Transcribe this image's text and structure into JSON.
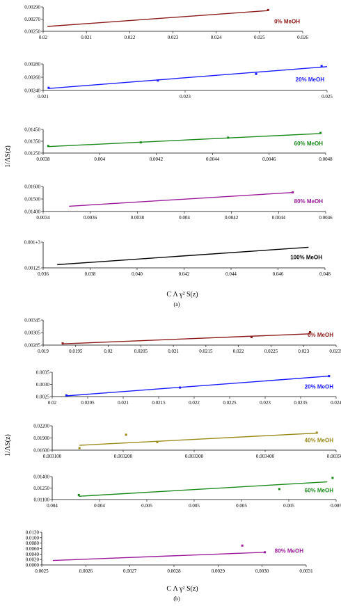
{
  "figure": {
    "ylabel": "1/ΛS(z)",
    "xlabel": "C Λ γ² S(z)",
    "caption_a": "(a)",
    "caption_b": "(b)"
  },
  "chart_data": [
    {
      "type": "line",
      "label": "0% MeOH",
      "color": "#8b1a1a",
      "xlim": [
        0.02,
        0.026
      ],
      "ylim": [
        0.0025,
        0.0029
      ],
      "xticks": [
        "0.02",
        "0.021",
        "0.022",
        "0.023",
        "0.024",
        "0.025",
        "0.026"
      ],
      "yticks": [
        "0.00250",
        "0.00270",
        "0.00290"
      ],
      "series": [
        {
          "x": [
            0.0201,
            0.0252
          ],
          "y": [
            0.00258,
            0.00284
          ]
        }
      ],
      "points": {
        "x": [
          0.0252
        ],
        "y": [
          0.00285
        ]
      }
    },
    {
      "type": "line",
      "label": "20% MeOH",
      "color": "#1a1aff",
      "xlim": [
        0.021,
        0.0262
      ],
      "ylim": [
        0.0024,
        0.0028
      ],
      "xticks": [
        "0.021",
        "0.023",
        "0.025"
      ],
      "yticks": [
        "0.00240",
        "0.00260",
        "0.00280"
      ],
      "series": [
        {
          "x": [
            0.0211,
            0.0262
          ],
          "y": [
            0.00243,
            0.00276
          ]
        }
      ],
      "points": {
        "x": [
          0.0211,
          0.0231,
          0.0249,
          0.0261
        ],
        "y": [
          0.00244,
          0.00255,
          0.00265,
          0.00277
        ]
      }
    },
    {
      "type": "line",
      "label": "60% MeOH",
      "color": "#1a8a1a",
      "xlim": [
        0.0038,
        0.0049
      ],
      "ylim": [
        0.0125,
        0.0145
      ],
      "xticks": [
        "0.0038",
        "0.004",
        "0.0042",
        "0.0044",
        "0.0046",
        "0.0048"
      ],
      "yticks": [
        "0.01250",
        "0.01350",
        "0.01450"
      ],
      "series": [
        {
          "x": [
            0.00382,
            0.00488
          ],
          "y": [
            0.01305,
            0.01415
          ]
        }
      ],
      "points": {
        "x": [
          0.00382,
          0.00418,
          0.00452,
          0.00488
        ],
        "y": [
          0.0131,
          0.0134,
          0.0138,
          0.0142
        ]
      }
    },
    {
      "type": "line",
      "label": "80% MeOH",
      "color": "#9a1a9a",
      "xlim": [
        0.0034,
        0.0046
      ],
      "ylim": [
        0.014,
        0.016
      ],
      "xticks": [
        "0.0034",
        "0.0036",
        "0.0038",
        "0.004",
        "0.0042",
        "0.0044",
        "0.0046"
      ],
      "yticks": [
        "0.01400",
        "0.01500",
        "0.01600"
      ],
      "series": [
        {
          "x": [
            0.00351,
            0.00446
          ],
          "y": [
            0.01442,
            0.01552
          ]
        }
      ],
      "points": {
        "x": [
          0.00446
        ],
        "y": [
          0.01553
        ]
      }
    },
    {
      "type": "line",
      "label": "100% MeOH",
      "color": "#000000",
      "xlim": [
        0.036,
        0.048
      ],
      "ylim": [
        0.00125,
        0.00145
      ],
      "xticks": [
        "0.036",
        "0.038",
        "0.040",
        "0.042",
        "0.044",
        "0.046",
        "0.048"
      ],
      "yticks": [
        "0.00125",
        "0.001+3"
      ],
      "series": [
        {
          "x": [
            0.0366,
            0.0473
          ],
          "y": [
            0.001275,
            0.00141
          ]
        }
      ],
      "points": {
        "x": [],
        "y": []
      }
    },
    {
      "type": "line",
      "label": "0% MeOH",
      "color": "#8b1a1a",
      "xlim": [
        0.019,
        0.0235
      ],
      "ylim": [
        0.00285,
        0.00345
      ],
      "xticks": [
        "0.019",
        "0.0195",
        "0.02",
        "0.0205",
        "0.021",
        "0.0215",
        "0.022",
        "0.0225",
        "0.023",
        "0.0235"
      ],
      "yticks": [
        "0.00285",
        "0.00305",
        "0.00345"
      ],
      "series": [
        {
          "x": [
            0.0193,
            0.0231
          ],
          "y": [
            0.00288,
            0.00312
          ]
        }
      ],
      "points": {
        "x": [
          0.0193,
          0.0222,
          0.0231
        ],
        "y": [
          0.00289,
          0.00304,
          0.00316
        ]
      }
    },
    {
      "type": "line",
      "label": "20% MeOH",
      "color": "#1a1aff",
      "xlim": [
        0.02,
        0.024
      ],
      "ylim": [
        0.0025,
        0.0035
      ],
      "xticks": [
        "0.02",
        "0.0205",
        "0.021",
        "0.0215",
        "0.022",
        "0.0225",
        "0.023",
        "0.0235",
        "0.024"
      ],
      "yticks": [
        "0.0025",
        "0.0030",
        "0.0035"
      ],
      "series": [
        {
          "x": [
            0.0202,
            0.0239
          ],
          "y": [
            0.00253,
            0.00334
          ]
        }
      ],
      "points": {
        "x": [
          0.0202,
          0.0218,
          0.0239
        ],
        "y": [
          0.00255,
          0.00287,
          0.00334
        ]
      }
    },
    {
      "type": "line",
      "label": "40% MeOH",
      "color": "#9a8a1a",
      "xlim": [
        0.0031,
        0.0036
      ],
      "ylim": [
        0.016,
        0.022
      ],
      "xticks": [
        "0.003100",
        "0.003200",
        "0.003300",
        "0.003400",
        "0.003500"
      ],
      "yticks": [
        "0.01600",
        "0.01900",
        "0.02200"
      ],
      "series": [
        {
          "x": [
            0.003148,
            0.003566
          ],
          "y": [
            0.0172,
            0.0202
          ]
        }
      ],
      "points": {
        "x": [
          0.003148,
          0.00323,
          0.003285,
          0.003566
        ],
        "y": [
          0.0165,
          0.0198,
          0.018,
          0.0203
        ]
      }
    },
    {
      "type": "line",
      "label": "60% MeOH",
      "color": "#1a8a1a",
      "xlim": [
        0.004,
        0.0056
      ],
      "ylim": [
        0.011,
        0.0145
      ],
      "xticks": [
        "0.004",
        "0.004",
        "0.005",
        "0.005",
        "0.005",
        "0.005",
        "0.005"
      ],
      "yticks": [
        "0.01100",
        "0.01250",
        "0.01400"
      ],
      "series": [
        {
          "x": [
            0.00415,
            0.00555
          ],
          "y": [
            0.0115,
            0.0137
          ]
        }
      ],
      "points": {
        "x": [
          0.00415,
          0.00528,
          0.00558
        ],
        "y": [
          0.0117,
          0.0126,
          0.0143
        ]
      }
    },
    {
      "type": "line",
      "label": "80% MeOH",
      "color": "#9a1a9a",
      "xlim": [
        0.0025,
        0.0031
      ],
      "ylim": [
        0.0,
        0.012
      ],
      "xticks": [
        "0.0025",
        "0.0026",
        "0.0027",
        "0.0028",
        "0.0029",
        "0.0030",
        "0.0031"
      ],
      "yticks": [
        "0.0000",
        "0.0020",
        "0.0040",
        "0.0060",
        "0.0080",
        "0.0100",
        "0.0120"
      ],
      "series": [
        {
          "x": [
            0.002525,
            0.003006
          ],
          "y": [
            0.00165,
            0.00465
          ]
        }
      ],
      "points": {
        "x": [
          0.002955,
          0.003006
        ],
        "y": [
          0.0071,
          0.00465
        ]
      }
    }
  ]
}
